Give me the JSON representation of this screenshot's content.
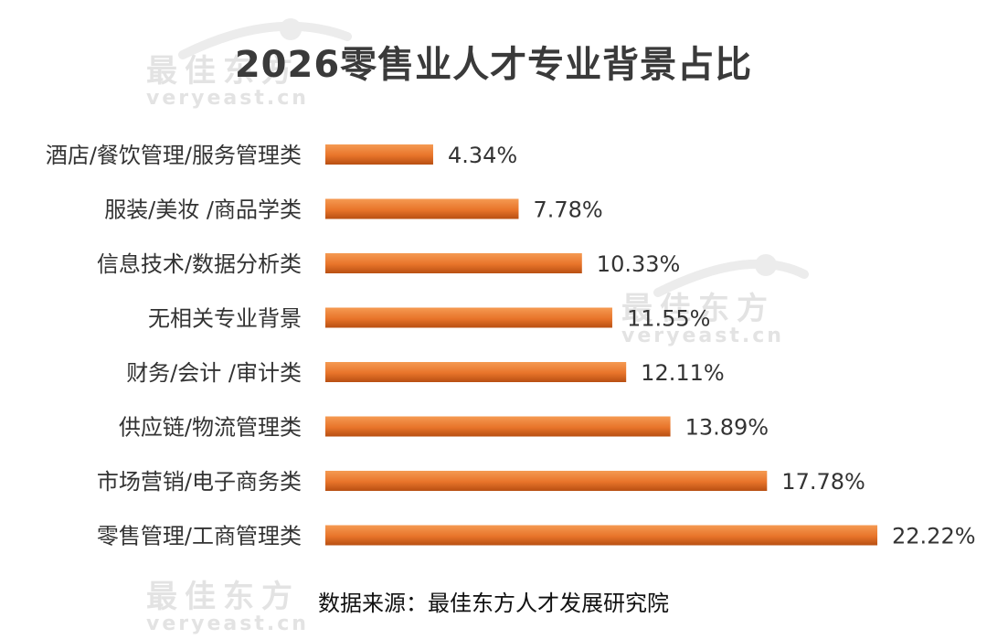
{
  "title": "2026零售业人才专业背景占比",
  "source": "数据来源：最佳东方人才发展研究院",
  "watermark": {
    "cn": "最佳东方",
    "en": "veryeast.cn"
  },
  "colors": {
    "bar_light": "#f08a3e",
    "bar_dark": "#b84f12",
    "label": "#333333"
  },
  "chart_data": {
    "type": "bar",
    "orientation": "horizontal",
    "categories": [
      "酒店/餐饮管理/服务管理类",
      "服装/美妆 /商品学类",
      "信息技术/数据分析类",
      "无相关专业背景",
      "财务/会计 /审计类",
      "供应链/物流管理类",
      "市场营销/电子商务类",
      "零售管理/工商管理类"
    ],
    "values": [
      4.34,
      7.78,
      10.33,
      11.55,
      12.11,
      13.89,
      17.78,
      22.22
    ],
    "value_labels": [
      "4.34%",
      "7.78%",
      "10.33%",
      "11.55%",
      "12.11%",
      "13.89%",
      "17.78%",
      "22.22%"
    ],
    "xlim": [
      0,
      22.22
    ],
    "grid": false,
    "legend": "none"
  }
}
